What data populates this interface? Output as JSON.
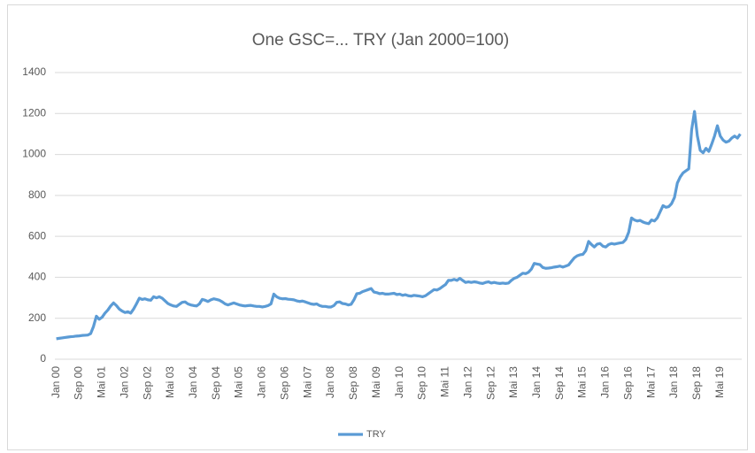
{
  "chart_data": {
    "type": "line",
    "title": "One GSC=... TRY (Jan 2000=100)",
    "categories": [
      "Jan 00",
      null,
      null,
      null,
      null,
      null,
      null,
      null,
      "Sep 00",
      null,
      null,
      null,
      null,
      null,
      null,
      null,
      "Mai 01",
      null,
      null,
      null,
      null,
      null,
      null,
      null,
      "Jan 02",
      null,
      null,
      null,
      null,
      null,
      null,
      null,
      "Sep 02",
      null,
      null,
      null,
      null,
      null,
      null,
      null,
      "Mai 03",
      null,
      null,
      null,
      null,
      null,
      null,
      null,
      "Jan 04",
      null,
      null,
      null,
      null,
      null,
      null,
      null,
      "Sep 04",
      null,
      null,
      null,
      null,
      null,
      null,
      null,
      "Mai 05",
      null,
      null,
      null,
      null,
      null,
      null,
      null,
      "Jan 06",
      null,
      null,
      null,
      null,
      null,
      null,
      null,
      "Sep 06",
      null,
      null,
      null,
      null,
      null,
      null,
      null,
      "Mai 07",
      null,
      null,
      null,
      null,
      null,
      null,
      null,
      "Jan 08",
      null,
      null,
      null,
      null,
      null,
      null,
      null,
      "Sep 08",
      null,
      null,
      null,
      null,
      null,
      null,
      null,
      "Mai 09",
      null,
      null,
      null,
      null,
      null,
      null,
      null,
      "Jan 10",
      null,
      null,
      null,
      null,
      null,
      null,
      null,
      "Sep 10",
      null,
      null,
      null,
      null,
      null,
      null,
      null,
      "Mai 11",
      null,
      null,
      null,
      null,
      null,
      null,
      null,
      "Jan 12",
      null,
      null,
      null,
      null,
      null,
      null,
      null,
      "Sep 12",
      null,
      null,
      null,
      null,
      null,
      null,
      null,
      "Mai 13",
      null,
      null,
      null,
      null,
      null,
      null,
      null,
      "Jan 14",
      null,
      null,
      null,
      null,
      null,
      null,
      null,
      "Sep 14",
      null,
      null,
      null,
      null,
      null,
      null,
      null,
      "Mai 15",
      null,
      null,
      null,
      null,
      null,
      null,
      null,
      "Jan 16",
      null,
      null,
      null,
      null,
      null,
      null,
      null,
      "Sep 16",
      null,
      null,
      null,
      null,
      null,
      null,
      null,
      "Mai 17",
      null,
      null,
      null,
      null,
      null,
      null,
      null,
      "Jan 18",
      null,
      null,
      null,
      null,
      null,
      null,
      null,
      "Sep 18",
      null,
      null,
      null,
      null,
      null,
      null,
      null,
      "Mai 19",
      null,
      null,
      null,
      null,
      null,
      null,
      null
    ],
    "series": [
      {
        "name": "TRY",
        "color": "#5b9bd5",
        "values": [
          100,
          102,
          104,
          106,
          108,
          110,
          111,
          113,
          114,
          116,
          117,
          118,
          125,
          160,
          210,
          195,
          205,
          225,
          240,
          260,
          275,
          262,
          245,
          235,
          228,
          232,
          225,
          245,
          270,
          298,
          292,
          295,
          290,
          288,
          305,
          300,
          305,
          298,
          285,
          272,
          265,
          260,
          258,
          268,
          278,
          280,
          270,
          265,
          262,
          260,
          270,
          292,
          288,
          282,
          290,
          295,
          292,
          288,
          280,
          270,
          265,
          270,
          275,
          270,
          265,
          262,
          260,
          262,
          263,
          260,
          258,
          258,
          255,
          258,
          262,
          270,
          318,
          305,
          298,
          295,
          296,
          293,
          292,
          290,
          285,
          282,
          284,
          280,
          275,
          270,
          268,
          270,
          262,
          258,
          258,
          255,
          255,
          262,
          278,
          280,
          272,
          270,
          265,
          268,
          290,
          320,
          322,
          330,
          335,
          340,
          345,
          328,
          325,
          320,
          322,
          318,
          318,
          320,
          322,
          316,
          318,
          312,
          315,
          310,
          308,
          312,
          310,
          308,
          305,
          310,
          320,
          330,
          340,
          338,
          345,
          355,
          365,
          385,
          385,
          390,
          385,
          395,
          385,
          375,
          378,
          375,
          378,
          376,
          372,
          370,
          375,
          378,
          372,
          375,
          372,
          370,
          372,
          370,
          372,
          385,
          395,
          400,
          410,
          420,
          418,
          425,
          440,
          468,
          465,
          462,
          448,
          444,
          445,
          447,
          450,
          452,
          455,
          450,
          455,
          460,
          478,
          495,
          505,
          510,
          512,
          530,
          575,
          560,
          548,
          562,
          565,
          552,
          548,
          560,
          565,
          562,
          565,
          568,
          570,
          585,
          620,
          690,
          680,
          675,
          678,
          670,
          665,
          662,
          680,
          675,
          690,
          720,
          750,
          742,
          745,
          760,
          790,
          860,
          890,
          910,
          920,
          930,
          1120,
          1210,
          1090,
          1020,
          1008,
          1030,
          1015,
          1050,
          1090,
          1140,
          1090,
          1070,
          1060,
          1065,
          1080,
          1090,
          1080,
          1100
        ]
      }
    ],
    "ylim": [
      0,
      1400
    ],
    "yticks": [
      0,
      200,
      400,
      600,
      800,
      1000,
      1200,
      1400
    ],
    "grid": true,
    "legend": "bottom"
  }
}
